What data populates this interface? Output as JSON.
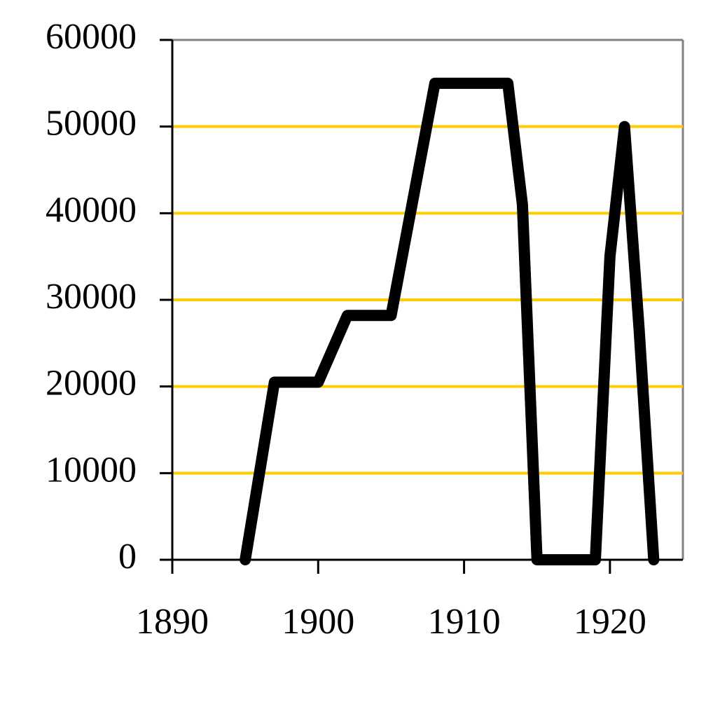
{
  "chart_data": {
    "type": "line",
    "x": [
      1895,
      1897,
      1900,
      1902,
      1905,
      1908,
      1913,
      1914,
      1915,
      1919,
      1920,
      1921,
      1922,
      1923
    ],
    "series": [
      {
        "color": "#000000",
        "values": [
          0,
          20500,
          20500,
          28200,
          28200,
          55000,
          55000,
          41000,
          0,
          0,
          35000,
          50000,
          26600,
          0
        ]
      }
    ],
    "xlim": [
      1890,
      1925
    ],
    "xticks": [
      1890,
      1900,
      1910,
      1920
    ],
    "ylim": [
      0,
      60000
    ],
    "yticks": [
      0,
      10000,
      20000,
      30000,
      40000,
      50000,
      60000
    ],
    "grid": true,
    "grid_color": "#ffcc00"
  }
}
